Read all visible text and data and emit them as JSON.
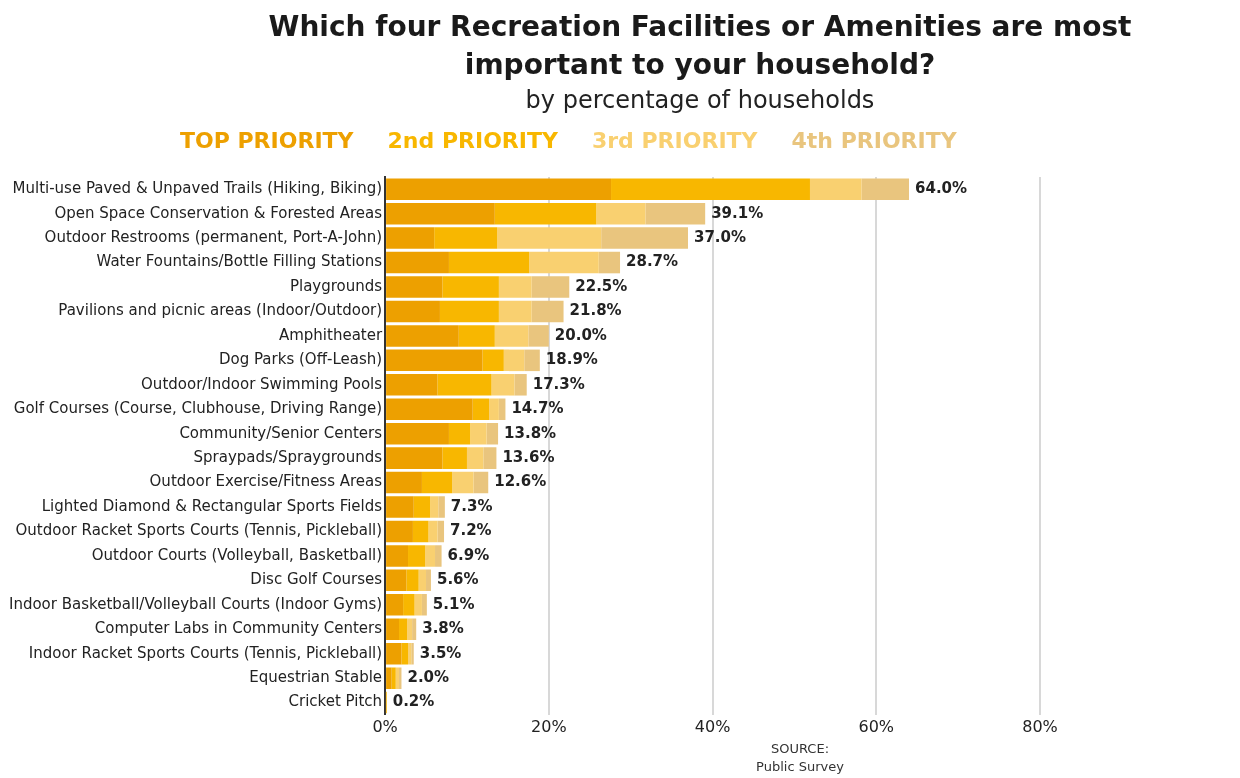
{
  "chart_data": {
    "type": "bar",
    "orientation": "horizontal",
    "stacked": true,
    "title": "Which four Recreation Facilities or Amenities are most important to your household?",
    "subtitle": "by percentage of households",
    "categories": [
      "Multi-use Paved & Unpaved Trails (Hiking, Biking)",
      "Open Space Conservation & Forested Areas",
      "Outdoor Restrooms (permanent, Port-A-John)",
      "Water Fountains/Bottle Filling Stations",
      "Playgrounds",
      "Pavilions and picnic areas (Indoor/Outdoor)",
      "Amphitheater",
      "Dog Parks (Off-Leash)",
      "Outdoor/Indoor Swimming Pools",
      "Golf Courses (Course, Clubhouse, Driving Range)",
      "Community/Senior Centers",
      "Spraypads/Spraygrounds",
      "Outdoor Exercise/Fitness Areas",
      "Lighted Diamond & Rectangular Sports Fields",
      "Outdoor Racket Sports Courts (Tennis, Pickleball)",
      "Outdoor Courts (Volleyball, Basketball)",
      "Disc Golf Courses",
      "Indoor Basketball/Volleyball Courts (Indoor Gyms)",
      "Computer Labs in Community Centers",
      "Indoor Racket Sports Courts (Tennis, Pickleball)",
      "Equestrian Stable",
      "Cricket Pitch"
    ],
    "series": [
      {
        "name": "TOP PRIORITY",
        "color": "#eda000",
        "values": [
          27.6,
          13.4,
          6.0,
          7.8,
          7.0,
          6.7,
          9.0,
          11.9,
          6.4,
          10.7,
          7.8,
          7.0,
          4.5,
          3.5,
          3.4,
          2.8,
          2.6,
          2.2,
          1.7,
          2.0,
          0.8,
          0.1
        ]
      },
      {
        "name": "2nd PRIORITY",
        "color": "#f8b700",
        "values": [
          24.3,
          12.4,
          7.7,
          9.8,
          6.9,
          7.2,
          4.4,
          2.6,
          6.6,
          2.0,
          2.6,
          3.0,
          3.7,
          2.0,
          1.9,
          2.1,
          1.5,
          1.4,
          1.0,
          0.8,
          0.5,
          0.1
        ]
      },
      {
        "name": "3rd PRIORITY",
        "color": "#f9d070",
        "values": [
          6.3,
          6.0,
          12.7,
          8.5,
          4.0,
          4.0,
          4.1,
          2.5,
          2.8,
          1.2,
          2.0,
          2.0,
          2.6,
          1.0,
          1.1,
          1.2,
          0.9,
          0.9,
          0.6,
          0.4,
          0.4,
          0
        ]
      },
      {
        "name": "4th PRIORITY",
        "color": "#e9c57e",
        "values": [
          5.8,
          7.3,
          10.6,
          2.6,
          4.6,
          3.9,
          2.5,
          1.9,
          1.5,
          0.8,
          1.4,
          1.6,
          1.8,
          0.8,
          0.8,
          0.8,
          0.6,
          0.6,
          0.5,
          0.3,
          0.3,
          0
        ]
      }
    ],
    "totals": [
      "64.0%",
      "39.1%",
      "37.0%",
      "28.7%",
      "22.5%",
      "21.8%",
      "20.0%",
      "18.9%",
      "17.3%",
      "14.7%",
      "13.8%",
      "13.6%",
      "12.6%",
      "7.3%",
      "7.2%",
      "6.9%",
      "5.6%",
      "5.1%",
      "3.8%",
      "3.5%",
      "2.0%",
      "0.2%"
    ],
    "xlim": [
      0,
      80
    ],
    "xticks": [
      {
        "value": 0,
        "label": "0%"
      },
      {
        "value": 20,
        "label": "20%"
      },
      {
        "value": 40,
        "label": "40%"
      },
      {
        "value": 60,
        "label": "60%"
      },
      {
        "value": 80,
        "label": "80%"
      }
    ],
    "grid": "x",
    "legend": "top",
    "annotations": [
      "SOURCE:\nPublic Survey"
    ]
  }
}
